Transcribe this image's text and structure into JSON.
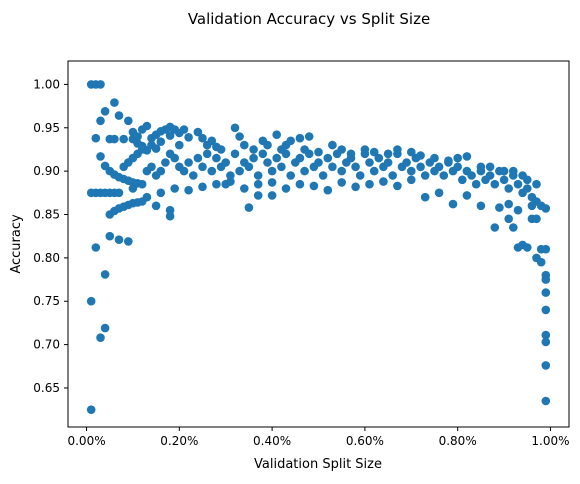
{
  "chart_data": {
    "type": "scatter",
    "title": "Validation Accuracy vs Split Size",
    "xlabel": "Validation Split Size",
    "ylabel": "Accuracy",
    "xlim": [
      -0.04,
      1.04
    ],
    "ylim": [
      0.605,
      1.027
    ],
    "xticks": [
      {
        "value": 0.0,
        "label": "0.00%"
      },
      {
        "value": 0.2,
        "label": "0.20%"
      },
      {
        "value": 0.4,
        "label": "0.40%"
      },
      {
        "value": 0.6,
        "label": "0.60%"
      },
      {
        "value": 0.8,
        "label": "0.80%"
      },
      {
        "value": 1.0,
        "label": "1.00%"
      }
    ],
    "yticks": [
      {
        "value": 0.65,
        "label": "0.65"
      },
      {
        "value": 0.7,
        "label": "0.70"
      },
      {
        "value": 0.75,
        "label": "0.75"
      },
      {
        "value": 0.8,
        "label": "0.80"
      },
      {
        "value": 0.85,
        "label": "0.85"
      },
      {
        "value": 0.9,
        "label": "0.90"
      },
      {
        "value": 0.95,
        "label": "0.95"
      },
      {
        "value": 1.0,
        "label": "1.00"
      }
    ],
    "grid": false,
    "marker_color": "#1f77b4",
    "series": [
      {
        "points": [
          [
            0.01,
            1.0
          ],
          [
            0.02,
            1.0
          ],
          [
            0.03,
            1.0
          ],
          [
            0.01,
            0.875
          ],
          [
            0.02,
            0.875
          ],
          [
            0.03,
            0.875
          ],
          [
            0.04,
            0.875
          ],
          [
            0.05,
            0.875
          ],
          [
            0.06,
            0.875
          ],
          [
            0.07,
            0.875
          ],
          [
            0.01,
            0.75
          ],
          [
            0.01,
            0.625
          ],
          [
            0.02,
            0.812
          ],
          [
            0.03,
            0.708
          ],
          [
            0.04,
            0.719
          ],
          [
            0.04,
            0.781
          ],
          [
            0.02,
            0.938
          ],
          [
            0.03,
            0.958
          ],
          [
            0.04,
            0.969
          ],
          [
            0.06,
            0.979
          ],
          [
            0.07,
            0.964
          ],
          [
            0.05,
            0.825
          ],
          [
            0.07,
            0.821
          ],
          [
            0.09,
            0.819
          ],
          [
            0.03,
            0.917
          ],
          [
            0.04,
            0.906
          ],
          [
            0.05,
            0.9
          ],
          [
            0.06,
            0.896
          ],
          [
            0.07,
            0.893
          ],
          [
            0.08,
            0.891
          ],
          [
            0.09,
            0.889
          ],
          [
            0.1,
            0.887
          ],
          [
            0.11,
            0.886
          ],
          [
            0.12,
            0.885
          ],
          [
            0.05,
            0.85
          ],
          [
            0.06,
            0.854
          ],
          [
            0.07,
            0.857
          ],
          [
            0.08,
            0.859
          ],
          [
            0.09,
            0.861
          ],
          [
            0.1,
            0.863
          ],
          [
            0.11,
            0.864
          ],
          [
            0.12,
            0.865
          ],
          [
            0.05,
            0.937
          ],
          [
            0.06,
            0.937
          ],
          [
            0.08,
            0.937
          ],
          [
            0.1,
            0.937
          ],
          [
            0.11,
            0.932
          ],
          [
            0.12,
            0.929
          ],
          [
            0.13,
            0.924
          ],
          [
            0.14,
            0.938
          ],
          [
            0.15,
            0.942
          ],
          [
            0.16,
            0.946
          ],
          [
            0.17,
            0.948
          ],
          [
            0.18,
            0.951
          ],
          [
            0.19,
            0.948
          ],
          [
            0.2,
            0.944
          ],
          [
            0.21,
            0.948
          ],
          [
            0.22,
            0.939
          ],
          [
            0.24,
            0.945
          ],
          [
            0.25,
            0.938
          ],
          [
            0.32,
            0.95
          ],
          [
            0.09,
            0.958
          ],
          [
            0.1,
            0.945
          ],
          [
            0.11,
            0.94
          ],
          [
            0.12,
            0.948
          ],
          [
            0.13,
            0.952
          ],
          [
            0.14,
            0.93
          ],
          [
            0.15,
            0.926
          ],
          [
            0.16,
            0.934
          ],
          [
            0.18,
            0.941
          ],
          [
            0.2,
            0.93
          ],
          [
            0.08,
            0.905
          ],
          [
            0.09,
            0.91
          ],
          [
            0.1,
            0.915
          ],
          [
            0.11,
            0.92
          ],
          [
            0.12,
            0.925
          ],
          [
            0.13,
            0.9
          ],
          [
            0.14,
            0.905
          ],
          [
            0.15,
            0.895
          ],
          [
            0.16,
            0.9
          ],
          [
            0.17,
            0.91
          ],
          [
            0.18,
            0.92
          ],
          [
            0.19,
            0.915
          ],
          [
            0.2,
            0.905
          ],
          [
            0.21,
            0.9
          ],
          [
            0.22,
            0.91
          ],
          [
            0.23,
            0.895
          ],
          [
            0.24,
            0.915
          ],
          [
            0.25,
            0.905
          ],
          [
            0.26,
            0.92
          ],
          [
            0.27,
            0.9
          ],
          [
            0.28,
            0.915
          ],
          [
            0.29,
            0.905
          ],
          [
            0.3,
            0.91
          ],
          [
            0.31,
            0.895
          ],
          [
            0.32,
            0.92
          ],
          [
            0.33,
            0.9
          ],
          [
            0.34,
            0.91
          ],
          [
            0.35,
            0.905
          ],
          [
            0.36,
            0.915
          ],
          [
            0.37,
            0.895
          ],
          [
            0.38,
            0.92
          ],
          [
            0.39,
            0.91
          ],
          [
            0.4,
            0.9
          ],
          [
            0.41,
            0.915
          ],
          [
            0.42,
            0.905
          ],
          [
            0.43,
            0.92
          ],
          [
            0.44,
            0.895
          ],
          [
            0.45,
            0.91
          ],
          [
            0.46,
            0.915
          ],
          [
            0.47,
            0.9
          ],
          [
            0.48,
            0.92
          ],
          [
            0.49,
            0.905
          ],
          [
            0.5,
            0.91
          ],
          [
            0.51,
            0.895
          ],
          [
            0.52,
            0.915
          ],
          [
            0.53,
            0.905
          ],
          [
            0.54,
            0.92
          ],
          [
            0.55,
            0.9
          ],
          [
            0.56,
            0.91
          ],
          [
            0.57,
            0.915
          ],
          [
            0.58,
            0.905
          ],
          [
            0.59,
            0.895
          ],
          [
            0.6,
            0.92
          ],
          [
            0.61,
            0.91
          ],
          [
            0.62,
            0.9
          ],
          [
            0.63,
            0.915
          ],
          [
            0.64,
            0.905
          ],
          [
            0.65,
            0.91
          ],
          [
            0.66,
            0.895
          ],
          [
            0.67,
            0.92
          ],
          [
            0.68,
            0.905
          ],
          [
            0.69,
            0.91
          ],
          [
            0.7,
            0.9
          ],
          [
            0.71,
            0.915
          ],
          [
            0.72,
            0.905
          ],
          [
            0.73,
            0.895
          ],
          [
            0.74,
            0.91
          ],
          [
            0.75,
            0.9
          ],
          [
            0.76,
            0.905
          ],
          [
            0.77,
            0.895
          ],
          [
            0.78,
            0.91
          ],
          [
            0.79,
            0.9
          ],
          [
            0.8,
            0.905
          ],
          [
            0.81,
            0.89
          ],
          [
            0.82,
            0.9
          ],
          [
            0.83,
            0.895
          ],
          [
            0.84,
            0.885
          ],
          [
            0.85,
            0.9
          ],
          [
            0.86,
            0.89
          ],
          [
            0.87,
            0.895
          ],
          [
            0.88,
            0.885
          ],
          [
            0.89,
            0.9
          ],
          [
            0.9,
            0.89
          ],
          [
            0.91,
            0.88
          ],
          [
            0.92,
            0.895
          ],
          [
            0.93,
            0.885
          ],
          [
            0.94,
            0.875
          ],
          [
            0.95,
            0.88
          ],
          [
            0.96,
            0.87
          ],
          [
            0.97,
            0.865
          ],
          [
            0.98,
            0.86
          ],
          [
            0.99,
            0.857
          ],
          [
            0.1,
            0.88
          ],
          [
            0.13,
            0.87
          ],
          [
            0.16,
            0.875
          ],
          [
            0.19,
            0.88
          ],
          [
            0.22,
            0.878
          ],
          [
            0.25,
            0.882
          ],
          [
            0.28,
            0.885
          ],
          [
            0.31,
            0.888
          ],
          [
            0.34,
            0.88
          ],
          [
            0.37,
            0.885
          ],
          [
            0.4,
            0.887
          ],
          [
            0.43,
            0.88
          ],
          [
            0.46,
            0.885
          ],
          [
            0.49,
            0.883
          ],
          [
            0.52,
            0.878
          ],
          [
            0.55,
            0.887
          ],
          [
            0.58,
            0.882
          ],
          [
            0.61,
            0.885
          ],
          [
            0.64,
            0.888
          ],
          [
            0.67,
            0.883
          ],
          [
            0.7,
            0.89
          ],
          [
            0.73,
            0.87
          ],
          [
            0.76,
            0.875
          ],
          [
            0.79,
            0.862
          ],
          [
            0.82,
            0.872
          ],
          [
            0.85,
            0.86
          ],
          [
            0.88,
            0.835
          ],
          [
            0.89,
            0.858
          ],
          [
            0.91,
            0.845
          ],
          [
            0.92,
            0.835
          ],
          [
            0.93,
            0.812
          ],
          [
            0.94,
            0.815
          ],
          [
            0.95,
            0.812
          ],
          [
            0.96,
            0.845
          ],
          [
            0.97,
            0.8
          ],
          [
            0.98,
            0.795
          ],
          [
            0.98,
            0.81
          ],
          [
            0.99,
            0.81
          ],
          [
            0.99,
            0.78
          ],
          [
            0.99,
            0.775
          ],
          [
            0.99,
            0.76
          ],
          [
            0.99,
            0.74
          ],
          [
            0.99,
            0.711
          ],
          [
            0.99,
            0.703
          ],
          [
            0.99,
            0.676
          ],
          [
            0.99,
            0.635
          ],
          [
            0.18,
            0.848
          ],
          [
            0.18,
            0.855
          ],
          [
            0.15,
            0.86
          ],
          [
            0.35,
            0.858
          ],
          [
            0.37,
            0.872
          ],
          [
            0.4,
            0.872
          ],
          [
            0.3,
            0.885
          ],
          [
            0.26,
            0.93
          ],
          [
            0.27,
            0.935
          ],
          [
            0.28,
            0.928
          ],
          [
            0.29,
            0.925
          ],
          [
            0.33,
            0.94
          ],
          [
            0.34,
            0.93
          ],
          [
            0.36,
            0.925
          ],
          [
            0.38,
            0.935
          ],
          [
            0.39,
            0.93
          ],
          [
            0.41,
            0.942
          ],
          [
            0.42,
            0.925
          ],
          [
            0.43,
            0.93
          ],
          [
            0.44,
            0.935
          ],
          [
            0.46,
            0.938
          ],
          [
            0.47,
            0.925
          ],
          [
            0.48,
            0.94
          ],
          [
            0.5,
            0.922
          ],
          [
            0.53,
            0.93
          ],
          [
            0.55,
            0.925
          ],
          [
            0.57,
            0.92
          ],
          [
            0.6,
            0.925
          ],
          [
            0.62,
            0.922
          ],
          [
            0.65,
            0.92
          ],
          [
            0.67,
            0.925
          ],
          [
            0.7,
            0.922
          ],
          [
            0.72,
            0.918
          ],
          [
            0.75,
            0.915
          ],
          [
            0.78,
            0.912
          ],
          [
            0.8,
            0.915
          ],
          [
            0.82,
            0.917
          ],
          [
            0.85,
            0.905
          ],
          [
            0.87,
            0.905
          ],
          [
            0.9,
            0.9
          ],
          [
            0.92,
            0.9
          ],
          [
            0.94,
            0.895
          ],
          [
            0.95,
            0.89
          ],
          [
            0.97,
            0.885
          ],
          [
            0.96,
            0.86
          ],
          [
            0.97,
            0.845
          ],
          [
            0.93,
            0.855
          ],
          [
            0.91,
            0.862
          ]
        ]
      }
    ]
  }
}
